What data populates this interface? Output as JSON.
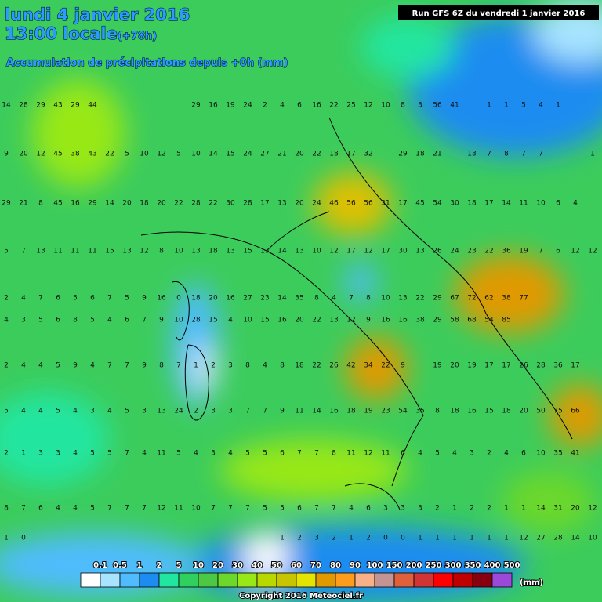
{
  "header": {
    "date": "lundi 4 janvier 2016",
    "time": "13:00 locale",
    "lead": "(+78h)",
    "subtitle": "Accumulation de précipitations depuis +0h (mm)",
    "run": "Run GFS 6Z du vendredi 1 janvier 2016"
  },
  "legend": {
    "labels": [
      "0.1",
      "0.5",
      "1",
      "2",
      "5",
      "10",
      "20",
      "30",
      "40",
      "50",
      "60",
      "70",
      "80",
      "90",
      "100",
      "150",
      "200",
      "250",
      "300",
      "350",
      "400",
      "500"
    ],
    "colors": [
      "#ffffff",
      "#a8e4ff",
      "#50bcff",
      "#1c8cf0",
      "#22e6a0",
      "#30d060",
      "#4cc844",
      "#6cd82c",
      "#98e818",
      "#b8d800",
      "#c8c400",
      "#e4e400",
      "#e09a00",
      "#ff9c1c",
      "#f8b088",
      "#c49494",
      "#e0603c",
      "#d03434",
      "#ff0000",
      "#c00000",
      "#880010",
      "#9c48d8"
    ],
    "unit": "(mm)"
  },
  "copyright": "Copyright 2016 Meteociel.fr",
  "grid": {
    "rows": [
      [
        14,
        28,
        29,
        43,
        29,
        44,
        null,
        null,
        null,
        null,
        null,
        29,
        16,
        19,
        24,
        2,
        4,
        6,
        16,
        22,
        25,
        12,
        10,
        8,
        3,
        56,
        41,
        null,
        1,
        1,
        5,
        4,
        1,
        null,
        null
      ],
      [
        9,
        20,
        12,
        45,
        38,
        43,
        22,
        5,
        10,
        12,
        5,
        10,
        14,
        15,
        24,
        27,
        21,
        20,
        22,
        18,
        17,
        32,
        null,
        29,
        18,
        21,
        null,
        13,
        7,
        8,
        7,
        7,
        null,
        null,
        1
      ],
      [
        29,
        21,
        8,
        45,
        16,
        29,
        14,
        20,
        18,
        20,
        22,
        28,
        22,
        30,
        28,
        17,
        13,
        20,
        24,
        46,
        56,
        56,
        31,
        17,
        45,
        54,
        30,
        18,
        17,
        14,
        11,
        10,
        6,
        4,
        null
      ],
      [
        5,
        7,
        13,
        11,
        11,
        11,
        15,
        13,
        12,
        8,
        10,
        13,
        18,
        13,
        15,
        13,
        14,
        13,
        10,
        12,
        17,
        12,
        17,
        30,
        13,
        26,
        24,
        23,
        22,
        36,
        19,
        7,
        6,
        12,
        12
      ],
      [
        2,
        4,
        7,
        6,
        5,
        6,
        7,
        5,
        9,
        16,
        0,
        18,
        20,
        16,
        27,
        23,
        14,
        35,
        8,
        4,
        7,
        8,
        10,
        13,
        22,
        29,
        67,
        72,
        62,
        38,
        77,
        null,
        null,
        null,
        null
      ],
      [
        4,
        3,
        5,
        6,
        8,
        5,
        4,
        6,
        7,
        9,
        10,
        28,
        15,
        4,
        10,
        15,
        16,
        20,
        22,
        13,
        12,
        9,
        16,
        16,
        38,
        29,
        58,
        68,
        54,
        85,
        null,
        null,
        null,
        null,
        null
      ],
      [
        2,
        4,
        4,
        5,
        9,
        4,
        7,
        7,
        9,
        8,
        7,
        1,
        2,
        3,
        8,
        4,
        8,
        18,
        22,
        26,
        42,
        34,
        22,
        9,
        null,
        19,
        20,
        19,
        17,
        17,
        26,
        28,
        36,
        17,
        null
      ],
      [
        5,
        4,
        4,
        5,
        4,
        3,
        4,
        5,
        3,
        13,
        24,
        2,
        3,
        3,
        7,
        7,
        9,
        11,
        14,
        16,
        18,
        19,
        23,
        54,
        35,
        8,
        18,
        16,
        15,
        18,
        20,
        50,
        75,
        66,
        null
      ],
      [
        2,
        1,
        3,
        3,
        4,
        5,
        5,
        7,
        4,
        11,
        5,
        4,
        3,
        4,
        5,
        5,
        6,
        7,
        7,
        8,
        11,
        12,
        11,
        6,
        4,
        5,
        4,
        3,
        2,
        4,
        6,
        10,
        35,
        41,
        null
      ],
      [
        8,
        7,
        6,
        4,
        4,
        5,
        7,
        7,
        7,
        12,
        11,
        10,
        7,
        7,
        7,
        5,
        5,
        6,
        7,
        7,
        4,
        6,
        3,
        3,
        3,
        2,
        1,
        2,
        2,
        1,
        1,
        14,
        31,
        20,
        12
      ],
      [
        1,
        0,
        null,
        null,
        null,
        null,
        null,
        null,
        null,
        null,
        null,
        null,
        null,
        null,
        null,
        null,
        1,
        2,
        3,
        2,
        1,
        2,
        0,
        0,
        1,
        1,
        1,
        1,
        1,
        1,
        12,
        27,
        28,
        14,
        10
      ]
    ]
  }
}
